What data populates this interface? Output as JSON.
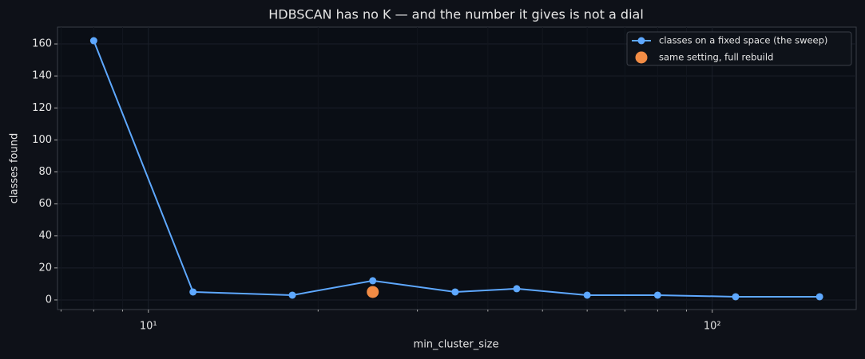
{
  "chart_data": {
    "type": "line",
    "title": "HDBSCAN has no K — and the number it gives is not a dial",
    "x_label": "min_cluster_size",
    "y_label": "classes found",
    "x_scale": "log",
    "xlim": [
      6.9,
      180
    ],
    "ylim": [
      -6,
      170.5
    ],
    "xticks": [
      {
        "value": 10,
        "label": "10¹"
      },
      {
        "value": 100,
        "label": "10²"
      }
    ],
    "xminor_ticks": [
      7,
      8,
      9,
      20,
      30,
      40,
      50,
      60,
      70,
      80,
      90
    ],
    "yticks": [
      0,
      20,
      40,
      60,
      80,
      100,
      120,
      140,
      160
    ],
    "grid": true,
    "legend": "upper right",
    "series": [
      {
        "name": "classes on a fixed space (the sweep)",
        "color": "#5ea8ff",
        "marker": "circle",
        "x": [
          8,
          12,
          18,
          25,
          35,
          45,
          60,
          80,
          110,
          155
        ],
        "values": [
          162,
          5,
          3,
          12,
          5,
          7,
          3,
          3,
          2,
          2
        ]
      },
      {
        "name": "same setting, full rebuild",
        "color": "#f28c45",
        "marker": "big-circle",
        "x": [
          25
        ],
        "values": [
          5
        ]
      }
    ]
  }
}
